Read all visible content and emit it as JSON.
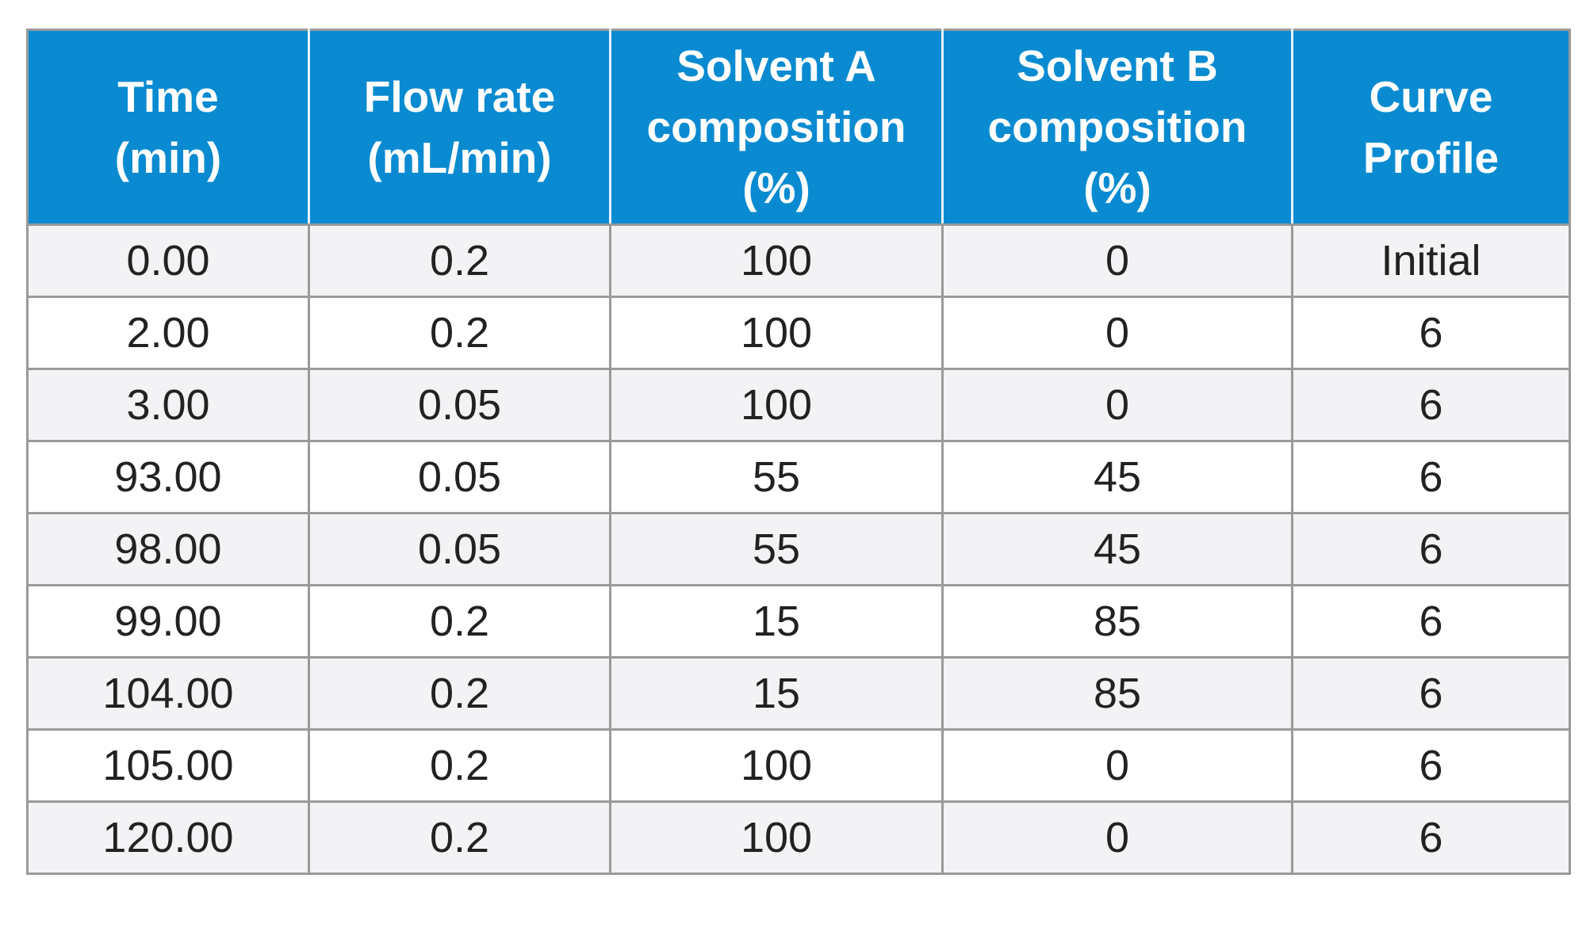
{
  "table": {
    "headers": [
      [
        "Time",
        "(min)"
      ],
      [
        "Flow rate",
        "(mL/min)"
      ],
      [
        "Solvent A",
        "composition",
        "(%)"
      ],
      [
        "Solvent B",
        "composition",
        "(%)"
      ],
      [
        "Curve",
        "Profile"
      ]
    ],
    "rows": [
      [
        "0.00",
        "0.2",
        "100",
        "0",
        "Initial"
      ],
      [
        "2.00",
        "0.2",
        "100",
        "0",
        "6"
      ],
      [
        "3.00",
        "0.05",
        "100",
        "0",
        "6"
      ],
      [
        "93.00",
        "0.05",
        "55",
        "45",
        "6"
      ],
      [
        "98.00",
        "0.05",
        "55",
        "45",
        "6"
      ],
      [
        "99.00",
        "0.2",
        "15",
        "85",
        "6"
      ],
      [
        "104.00",
        "0.2",
        "15",
        "85",
        "6"
      ],
      [
        "105.00",
        "0.2",
        "100",
        "0",
        "6"
      ],
      [
        "120.00",
        "0.2",
        "100",
        "0",
        "6"
      ]
    ]
  }
}
